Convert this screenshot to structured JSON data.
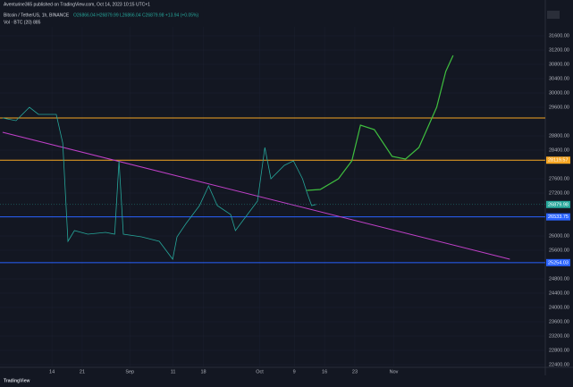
{
  "header": {
    "publisher": "Aventurine365 published on TradingView.com, Oct 14, 2023 10:15 UTC+1",
    "symbol": "Bitcoin / TetherUS, 1h, BINANCE",
    "ohlc": "O26866.04 H26879.99 L26866.04 C26879.98 +13.94 (+0.05%)",
    "volume": "Vol · BTC (20)  885"
  },
  "footer": {
    "brand": "TradingView"
  },
  "chart_data": {
    "type": "line",
    "x": [
      1.6,
      4.7,
      7.8,
      9.9,
      14.0,
      15.5,
      16.7,
      18.2,
      21.3,
      25.4,
      27.5,
      28.5,
      29.5,
      33.7,
      37.8,
      40.9,
      41.9,
      44.0,
      47.1,
      49.2,
      51.2,
      54.3,
      55.4,
      57.4,
      60.5,
      62.2,
      63.6,
      66.7,
      68.8,
      70.9,
      71.9,
      73.0,
      74.0
    ],
    "values": [
      29300,
      29225,
      29600,
      29400,
      29400,
      28600,
      25850,
      26150,
      26050,
      26100,
      26050,
      28100,
      26050,
      25975,
      25850,
      25350,
      25975,
      26350,
      26850,
      27400,
      26850,
      26600,
      26150,
      26475,
      26975,
      28475,
      27600,
      27975,
      28100,
      27600,
      27225,
      26850,
      26880
    ],
    "color": "#26a69a",
    "trendline": {
      "x": [
        1.6,
        118.8
      ],
      "values": [
        28900,
        25350
      ],
      "color": "#c040c8"
    },
    "projection": {
      "x": [
        71.9,
        75.0,
        79.2,
        82.3,
        84.3,
        87.5,
        91.6,
        94.7,
        97.8,
        101.9,
        104.0,
        105.7
      ],
      "values": [
        27275,
        27300,
        27600,
        28100,
        29100,
        28975,
        28225,
        28150,
        28475,
        29600,
        30600,
        31050
      ],
      "color": "#3fbf3f"
    },
    "levels": [
      {
        "value": 29300,
        "color": "#f5a623"
      },
      {
        "value": 28119.57,
        "label": 28119.57,
        "color": "#f5a623"
      },
      {
        "value": 26533.75,
        "label": 26533.75,
        "color": "#2962ff"
      },
      {
        "value": 25254.03,
        "label": 25254.03,
        "color": "#2962ff"
      }
    ],
    "last_price": 26879.98,
    "xlim": [
      1,
      127
    ],
    "xticks": [
      {
        "value": 13,
        "label": "14"
      },
      {
        "value": 20,
        "label": "21"
      },
      {
        "value": 31,
        "label": "Sep"
      },
      {
        "value": 41,
        "label": "11"
      },
      {
        "value": 48,
        "label": "18"
      },
      {
        "value": 61,
        "label": "Oct"
      },
      {
        "value": 69,
        "label": "9"
      },
      {
        "value": 76,
        "label": "16"
      },
      {
        "value": 83,
        "label": "23"
      },
      {
        "value": 92,
        "label": "Nov"
      }
    ],
    "ylim": [
      22350,
      31600
    ],
    "yticks": [
      {
        "value": 22400,
        "label": "22400.00"
      },
      {
        "value": 22800,
        "label": "22800.00"
      },
      {
        "value": 23200,
        "label": "23200.00"
      },
      {
        "value": 23600,
        "label": "23600.00"
      },
      {
        "value": 24000,
        "label": "24000.00"
      },
      {
        "value": 24400,
        "label": "24400.00"
      },
      {
        "value": 24800,
        "label": "24800.00"
      },
      {
        "value": 25600,
        "label": "25600.00"
      },
      {
        "value": 26000,
        "label": "26000.00"
      },
      {
        "value": 27200,
        "label": "27200.00"
      },
      {
        "value": 27600,
        "label": "27600.00"
      },
      {
        "value": 28400,
        "label": "28400.00"
      },
      {
        "value": 28800,
        "label": "28800.00"
      },
      {
        "value": 29600,
        "label": "29600.00"
      },
      {
        "value": 30000,
        "label": "30000.00"
      },
      {
        "value": 30400,
        "label": "30400.00"
      },
      {
        "value": 30800,
        "label": "30800.00"
      },
      {
        "value": 31200,
        "label": "31200.00"
      },
      {
        "value": 31600,
        "label": "31600.00"
      }
    ],
    "grid": true
  }
}
